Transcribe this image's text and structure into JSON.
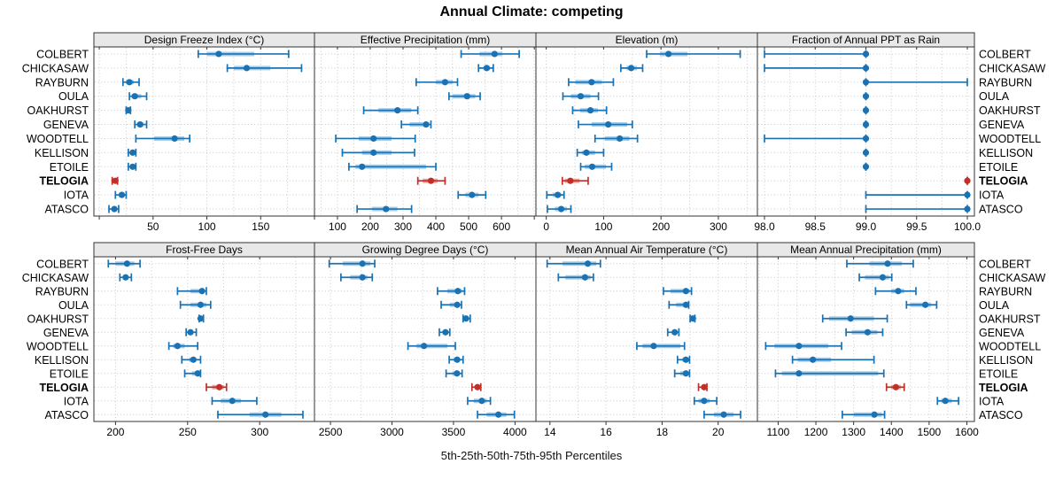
{
  "title": "Annual Climate: competing",
  "caption": "5th-25th-50th-75th-95th Percentiles",
  "percentiles": [
    5,
    25,
    50,
    75,
    95
  ],
  "stations": [
    "COLBERT",
    "CHICKASAW",
    "RAYBURN",
    "OULA",
    "OAKHURST",
    "GENEVA",
    "WOODTELL",
    "KELLISON",
    "ETOILE",
    "TELOGIA",
    "IOTA",
    "ATASCO"
  ],
  "highlight_station": "TELOGIA",
  "colors": {
    "series": "#1a72b2",
    "band": "#a9cce6",
    "highlight": "#c03028",
    "highlight_band": "#e2a8a3",
    "grid": "#c9c9c9",
    "border": "#333333",
    "strip_bg": "#e8e8e8",
    "tick": "#333333",
    "text": "#000000"
  },
  "chart_data": [
    {
      "type": "dotplot",
      "title": "Design Freeze Index (°C)",
      "xlim": [
        -5,
        200
      ],
      "ticks": [
        50,
        100,
        150
      ],
      "tick_labels": [
        "50",
        "100",
        "150"
      ],
      "extra_ticks": [
        0,
        200
      ],
      "minor_step": 25,
      "values": [
        [
          92,
          100,
          111,
          144,
          176
        ],
        [
          119,
          125,
          137,
          159,
          188
        ],
        [
          22,
          25,
          28,
          32,
          37
        ],
        [
          28,
          30,
          33,
          39,
          44
        ],
        [
          25,
          26,
          27,
          28,
          29
        ],
        [
          33,
          35,
          38,
          41,
          44
        ],
        [
          34,
          51,
          70,
          79,
          84
        ],
        [
          27,
          29,
          31,
          32,
          34
        ],
        [
          27,
          29,
          31,
          32,
          34
        ],
        [
          12,
          14,
          15,
          16,
          17
        ],
        [
          15,
          18,
          21,
          23,
          25
        ],
        [
          9,
          12,
          14,
          16,
          18
        ]
      ]
    },
    {
      "type": "dotplot",
      "title": "Effective Precipitation (mm)",
      "xlim": [
        30,
        705
      ],
      "ticks": [
        100,
        200,
        300,
        400,
        500,
        600
      ],
      "tick_labels": [
        "100",
        "200",
        "300",
        "400",
        "500",
        "600"
      ],
      "extra_ticks": [
        700
      ],
      "minor_step": 50,
      "values": [
        [
          477,
          533,
          579,
          603,
          654
        ],
        [
          530,
          545,
          555,
          565,
          575
        ],
        [
          340,
          400,
          428,
          452,
          466
        ],
        [
          440,
          450,
          495,
          520,
          535
        ],
        [
          180,
          225,
          283,
          325,
          345
        ],
        [
          295,
          320,
          370,
          380,
          385
        ],
        [
          95,
          165,
          210,
          265,
          337
        ],
        [
          115,
          175,
          210,
          265,
          335
        ],
        [
          135,
          155,
          175,
          370,
          400
        ],
        [
          345,
          360,
          385,
          405,
          428
        ],
        [
          468,
          490,
          510,
          530,
          552
        ],
        [
          160,
          205,
          248,
          283,
          326
        ]
      ]
    },
    {
      "type": "dotplot",
      "title": "Elevation (m)",
      "xlim": [
        -18,
        368
      ],
      "ticks": [
        0,
        100,
        200,
        300
      ],
      "tick_labels": [
        "0",
        "100",
        "200",
        "300"
      ],
      "extra_ticks": [],
      "minor_step": 50,
      "values": [
        [
          175,
          198,
          213,
          246,
          338
        ],
        [
          130,
          140,
          148,
          158,
          168
        ],
        [
          39,
          51,
          79,
          97,
          117
        ],
        [
          29,
          43,
          60,
          77,
          91
        ],
        [
          46,
          59,
          77,
          90,
          105
        ],
        [
          56,
          79,
          108,
          141,
          150
        ],
        [
          85,
          102,
          128,
          145,
          159
        ],
        [
          54,
          62,
          70,
          85,
          100
        ],
        [
          60,
          67,
          80,
          104,
          114
        ],
        [
          28,
          32,
          42,
          58,
          73
        ],
        [
          1,
          11,
          20,
          26,
          31
        ],
        [
          2,
          15,
          26,
          36,
          43
        ]
      ]
    },
    {
      "type": "dotplot",
      "title": "Fraction of Annual PPT as Rain",
      "xlim": [
        97.93,
        100.07
      ],
      "ticks": [
        98.0,
        98.5,
        99.0,
        99.5,
        100.0
      ],
      "tick_labels": [
        "98.0",
        "98.5",
        "99.0",
        "99.5",
        "100.0"
      ],
      "extra_ticks": [],
      "minor_step": 0.25,
      "values": [
        [
          98,
          99,
          99,
          99,
          99
        ],
        [
          98,
          99,
          99,
          99,
          99
        ],
        [
          99,
          99,
          99,
          99,
          100
        ],
        [
          99,
          99,
          99,
          99,
          99
        ],
        [
          99,
          99,
          99,
          99,
          99
        ],
        [
          99,
          99,
          99,
          99,
          99
        ],
        [
          98,
          99,
          99,
          99,
          99
        ],
        [
          99,
          99,
          99,
          99,
          99
        ],
        [
          99,
          99,
          99,
          99,
          99
        ],
        [
          100,
          100,
          100,
          100,
          100
        ],
        [
          99,
          100,
          100,
          100,
          100
        ],
        [
          99,
          100,
          100,
          100,
          100
        ]
      ]
    },
    {
      "type": "dotplot",
      "title": "Frost-Free Days",
      "xlim": [
        185,
        338
      ],
      "ticks": [
        200,
        250,
        300
      ],
      "tick_labels": [
        "200",
        "250",
        "300"
      ],
      "extra_ticks": [],
      "minor_step": 25,
      "values": [
        [
          195,
          200,
          208,
          213,
          217
        ],
        [
          203,
          205,
          207,
          209,
          211
        ],
        [
          243,
          252,
          260,
          261,
          263
        ],
        [
          245,
          252,
          259,
          263,
          266
        ],
        [
          258,
          258,
          259,
          260,
          261
        ],
        [
          249,
          251,
          252,
          254,
          256
        ],
        [
          237,
          240,
          243,
          248,
          257
        ],
        [
          246,
          251,
          254,
          256,
          259
        ],
        [
          248,
          253,
          257,
          258,
          259
        ],
        [
          263,
          267,
          272,
          275,
          277
        ],
        [
          267,
          273,
          281,
          287,
          298
        ],
        [
          271,
          293,
          304,
          315,
          330
        ]
      ]
    },
    {
      "type": "dotplot",
      "title": "Growing Degree Days (°C)",
      "xlim": [
        2370,
        4170
      ],
      "ticks": [
        2500,
        3000,
        3500,
        4000
      ],
      "tick_labels": [
        "2500",
        "3000",
        "3500",
        "4000"
      ],
      "extra_ticks": [],
      "minor_step": 250,
      "values": [
        [
          2490,
          2600,
          2760,
          2825,
          2860
        ],
        [
          2585,
          2660,
          2760,
          2800,
          2840
        ],
        [
          3370,
          3450,
          3535,
          3570,
          3590
        ],
        [
          3400,
          3470,
          3530,
          3550,
          3565
        ],
        [
          3578,
          3590,
          3602,
          3618,
          3636
        ],
        [
          3385,
          3410,
          3435,
          3455,
          3470
        ],
        [
          3130,
          3200,
          3260,
          3450,
          3515
        ],
        [
          3465,
          3500,
          3530,
          3550,
          3578
        ],
        [
          3440,
          3490,
          3528,
          3550,
          3570
        ],
        [
          3650,
          3672,
          3695,
          3710,
          3722
        ],
        [
          3615,
          3665,
          3730,
          3770,
          3800
        ],
        [
          3695,
          3770,
          3865,
          3930,
          3995
        ]
      ]
    },
    {
      "type": "dotplot",
      "title": "Mean Annual Air Temperature (°C)",
      "xlim": [
        13.5,
        21.4
      ],
      "ticks": [
        14,
        16,
        18,
        20
      ],
      "tick_labels": [
        "14",
        "16",
        "18",
        "20"
      ],
      "extra_ticks": [],
      "minor_step": 1,
      "values": [
        [
          13.9,
          14.45,
          15.35,
          15.65,
          15.8
        ],
        [
          14.3,
          14.55,
          15.25,
          15.45,
          15.55
        ],
        [
          18.05,
          18.3,
          18.85,
          18.98,
          19.05
        ],
        [
          18.25,
          18.5,
          18.85,
          18.9,
          18.95
        ],
        [
          19.0,
          19.05,
          19.1,
          19.13,
          19.17
        ],
        [
          18.2,
          18.35,
          18.45,
          18.55,
          18.6
        ],
        [
          17.1,
          17.3,
          17.7,
          18.65,
          18.8
        ],
        [
          18.55,
          18.72,
          18.85,
          18.92,
          18.98
        ],
        [
          18.45,
          18.65,
          18.85,
          18.92,
          18.98
        ],
        [
          19.3,
          19.4,
          19.5,
          19.55,
          19.6
        ],
        [
          19.15,
          19.3,
          19.5,
          19.7,
          19.95
        ],
        [
          19.5,
          19.85,
          20.2,
          20.55,
          20.8
        ]
      ]
    },
    {
      "type": "dotplot",
      "title": "Mean Annual Precipitation (mm)",
      "xlim": [
        1045,
        1620
      ],
      "ticks": [
        1100,
        1200,
        1300,
        1400,
        1500,
        1600
      ],
      "tick_labels": [
        "1100",
        "1200",
        "1300",
        "1400",
        "1500",
        "1600"
      ],
      "extra_ticks": [],
      "minor_step": 50,
      "values": [
        [
          1282,
          1342,
          1390,
          1428,
          1458
        ],
        [
          1315,
          1330,
          1377,
          1394,
          1401
        ],
        [
          1358,
          1400,
          1418,
          1434,
          1465
        ],
        [
          1440,
          1450,
          1490,
          1505,
          1520
        ],
        [
          1218,
          1235,
          1292,
          1354,
          1389
        ],
        [
          1280,
          1295,
          1337,
          1363,
          1377
        ],
        [
          1067,
          1090,
          1155,
          1233,
          1268
        ],
        [
          1138,
          1152,
          1192,
          1240,
          1354
        ],
        [
          1093,
          1110,
          1155,
          1365,
          1380
        ],
        [
          1387,
          1400,
          1412,
          1425,
          1434
        ],
        [
          1522,
          1532,
          1543,
          1560,
          1578
        ],
        [
          1270,
          1300,
          1355,
          1375,
          1382
        ]
      ]
    }
  ]
}
